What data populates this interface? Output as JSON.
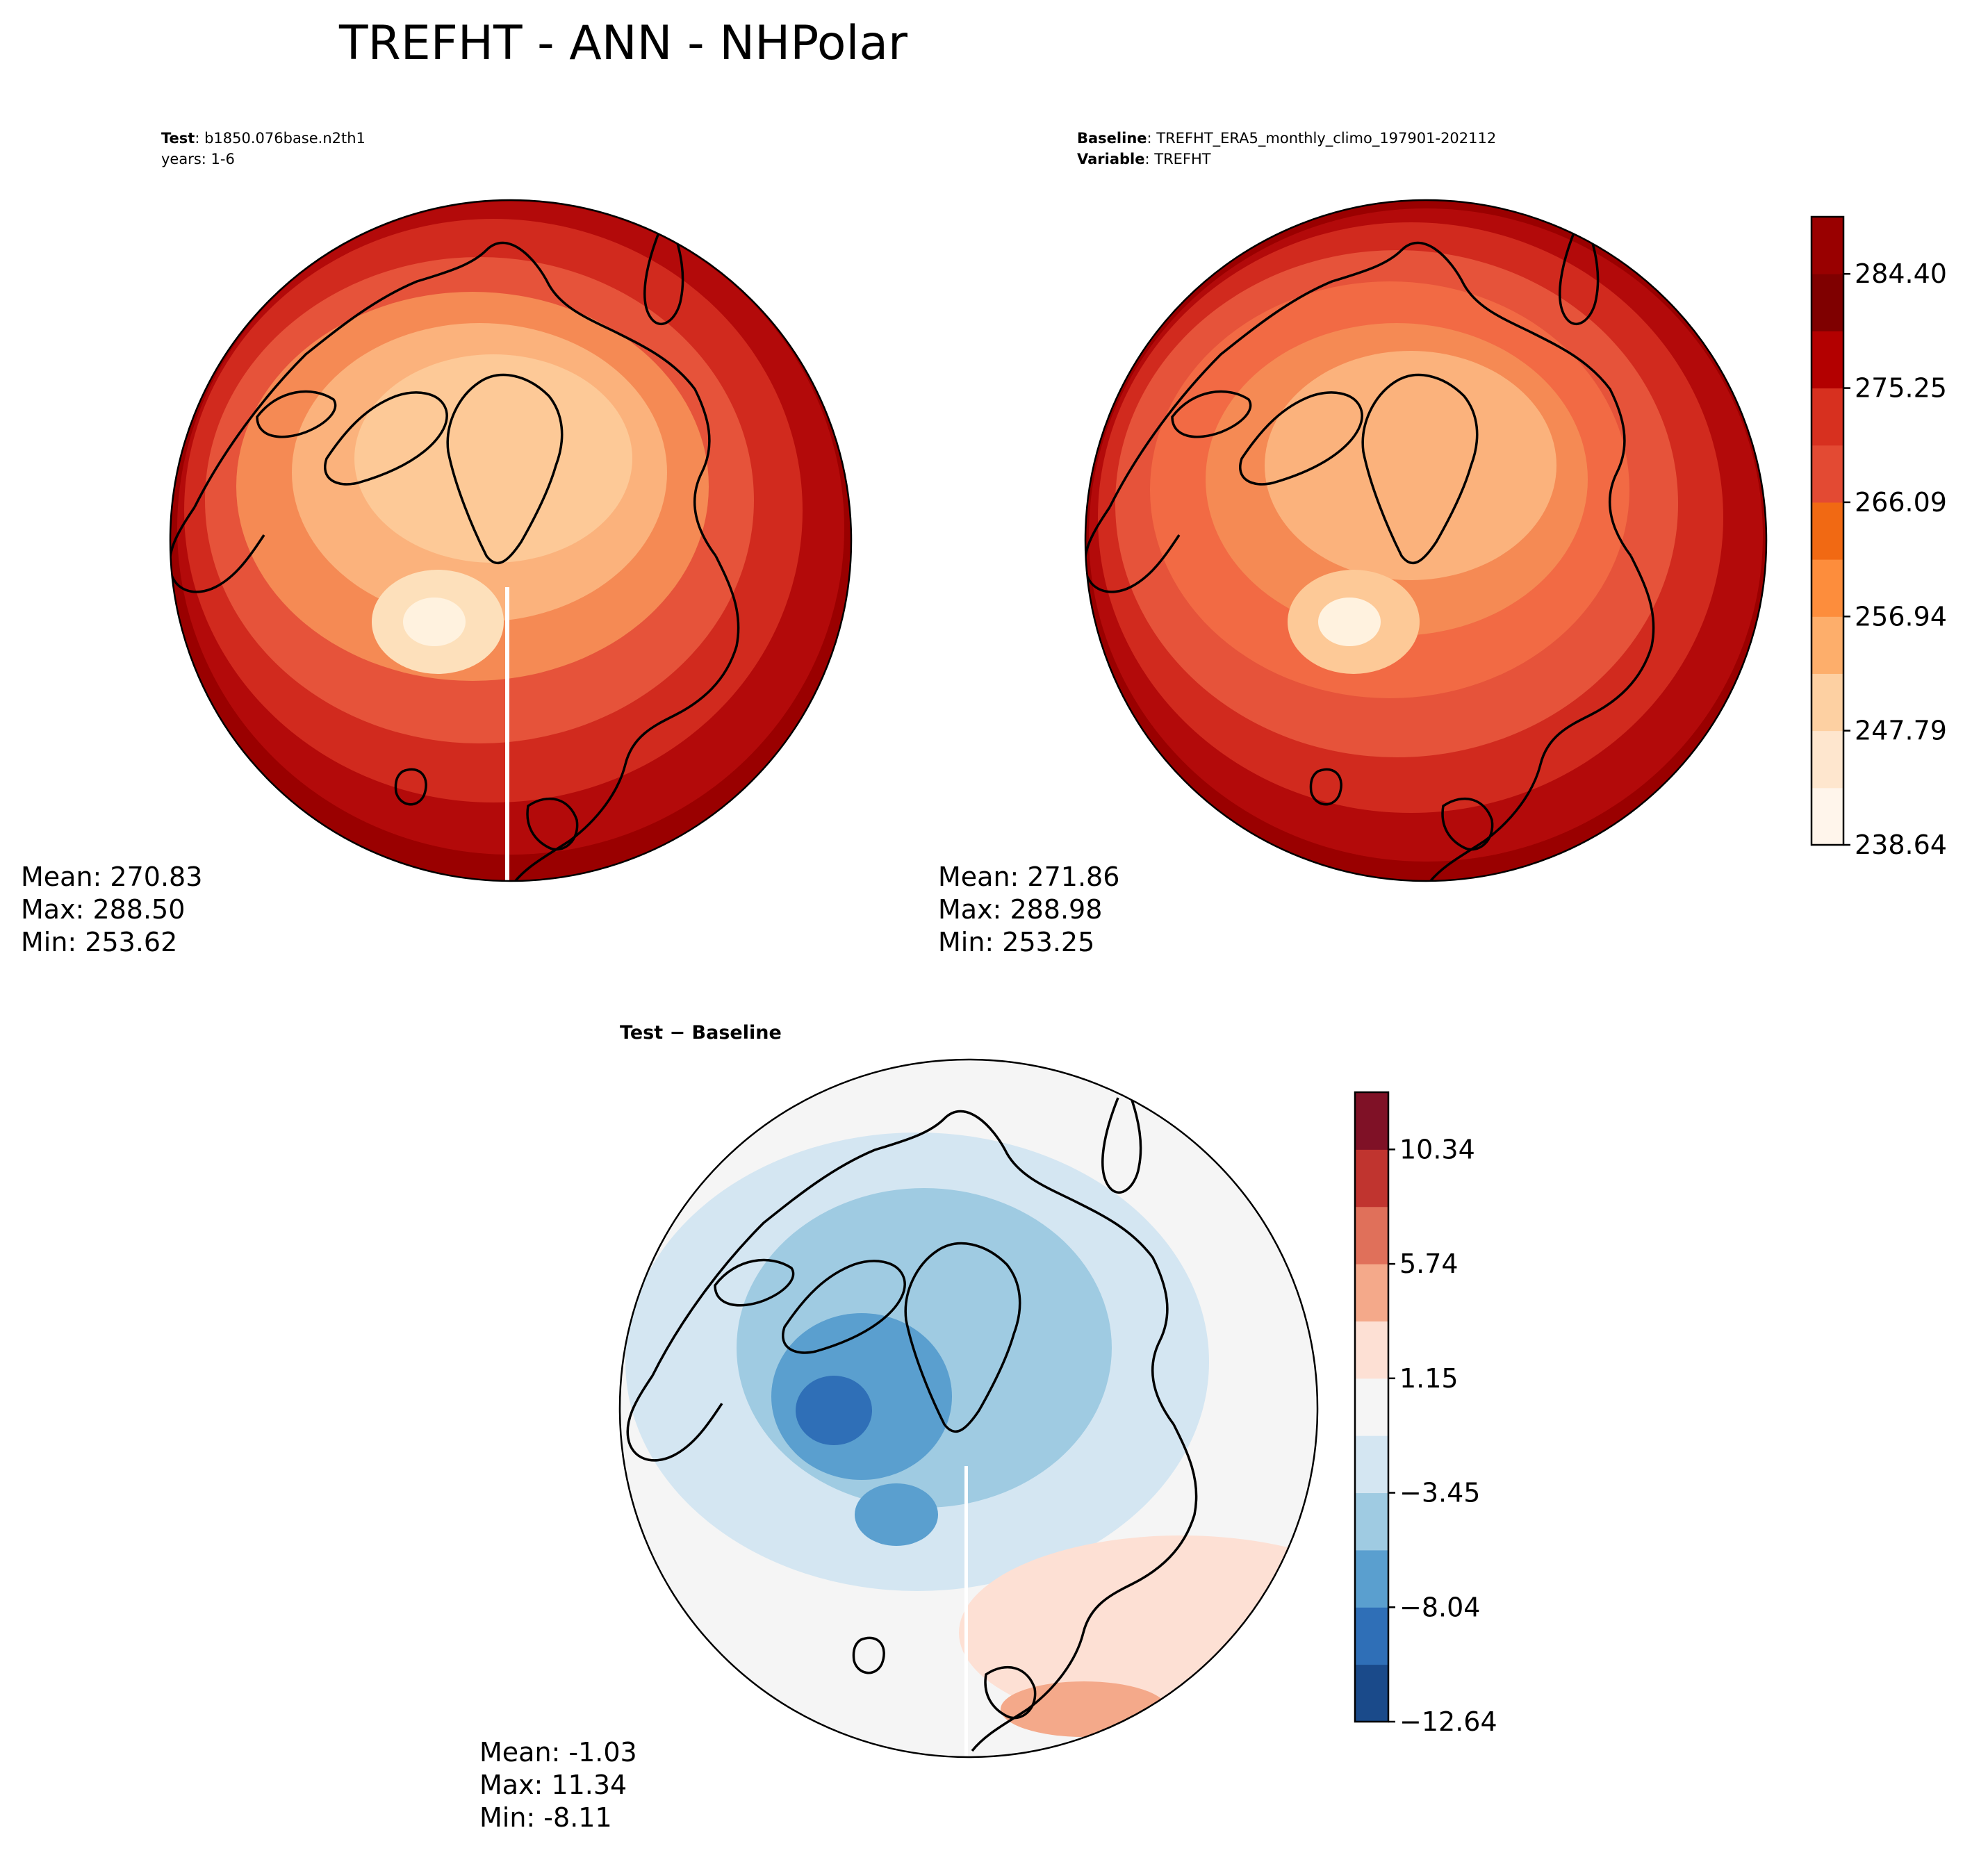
{
  "figure": {
    "title": "TREFHT - ANN - NHPolar"
  },
  "panels": {
    "test": {
      "label_bold": "Test",
      "label_text": ": b1850.076base.n2th1",
      "line2": "years: 1-6",
      "stats": {
        "mean": "Mean: 270.83",
        "max": "Max: 288.50",
        "min": "Min: 253.62"
      }
    },
    "baseline": {
      "label_bold": "Baseline",
      "label_text": ": TREFHT_ERA5_monthly_climo_197901-202112",
      "line2_bold": "Variable",
      "line2_text": ": TREFHT",
      "stats": {
        "mean": "Mean: 271.86",
        "max": "Max: 288.98",
        "min": "Min: 253.25"
      }
    },
    "diff": {
      "title": "Test − Baseline",
      "stats": {
        "mean": "Mean: -1.03",
        "max": "Max: 11.34",
        "min": "Min: -8.11"
      }
    }
  },
  "colorbars": {
    "main": {
      "colors": [
        "#fff5eb",
        "#fee6ce",
        "#fdd0a2",
        "#fdae6b",
        "#fd8d3c",
        "#f16913",
        "#e34a33",
        "#d7301f",
        "#b30000",
        "#7f0000",
        "#990000"
      ],
      "ticks": [
        "238.64",
        "247.79",
        "256.94",
        "266.09",
        "275.25",
        "284.40"
      ]
    },
    "diff": {
      "colors": [
        "#1a4a8a",
        "#2f6fb7",
        "#5a9fcf",
        "#9fcbe2",
        "#d4e6f2",
        "#f5f5f5",
        "#fde0d4",
        "#f4a98a",
        "#e0705a",
        "#c0342f",
        "#7f1126"
      ],
      "ticks": [
        "−12.64",
        "−8.04",
        "−3.45",
        "1.15",
        "5.74",
        "10.34"
      ]
    }
  },
  "map_colors": {
    "ring_outer": "#9a0000",
    "ring_2": "#b30a0a",
    "ring_3": "#d12a1e",
    "ring_4": "#e6533a",
    "ring_5": "#f58a54",
    "ring_6": "#fbb27c",
    "ring_7": "#fdc997",
    "greenland_1": "#fde0bb",
    "greenland_2": "#fff2df",
    "diff_bg": "#f5f5f5",
    "diff_blue_1": "#d4e6f2",
    "diff_blue_2": "#9fcbe2",
    "diff_blue_3": "#5a9fcf",
    "diff_blue_4": "#2f6fb7",
    "diff_red_1": "#fde0d4",
    "diff_red_2": "#f4a98a"
  }
}
